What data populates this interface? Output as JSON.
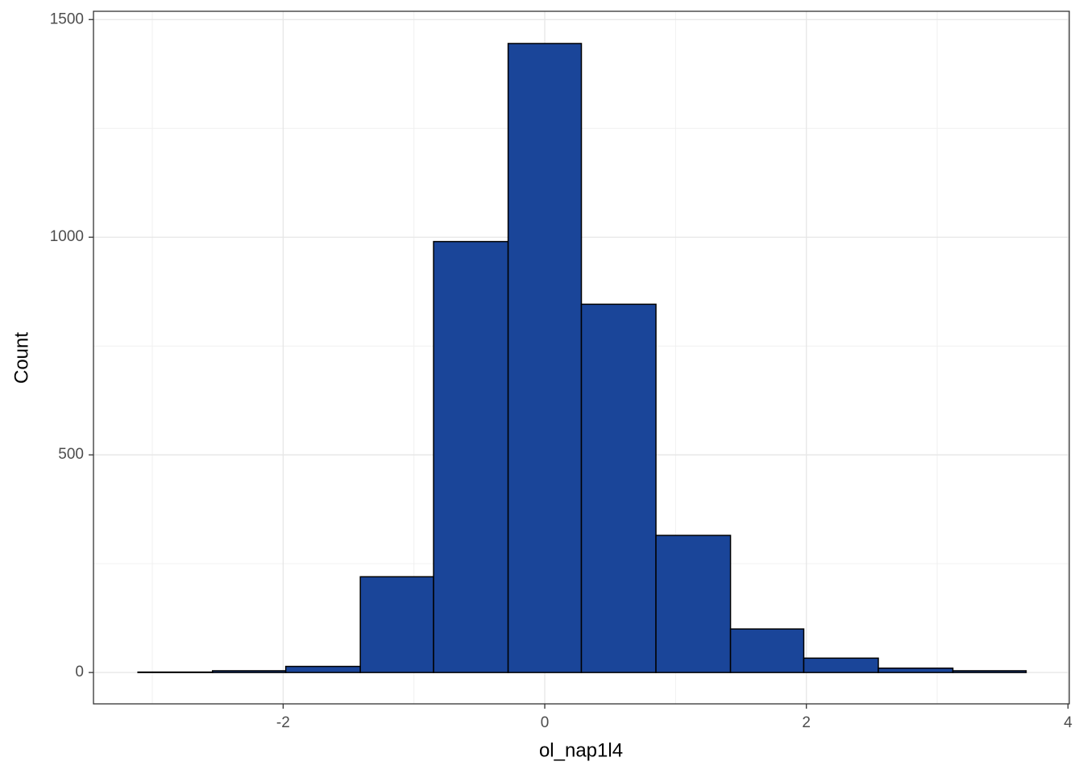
{
  "chart_data": {
    "type": "histogram",
    "x_label": "ol_nap1l4",
    "y_label": "Count",
    "bins": [
      -3.11,
      -2.54,
      -1.98,
      -1.41,
      -0.85,
      -0.28,
      0.28,
      0.85,
      1.42,
      1.98,
      2.55,
      3.12,
      3.68
    ],
    "values": [
      1,
      4,
      14,
      220,
      990,
      1445,
      846,
      315,
      100,
      33,
      10,
      4
    ],
    "color": "#1a4599",
    "xlim": [
      -3.45,
      4.01
    ],
    "ylim": [
      -72,
      1519
    ],
    "xticks": [
      -2,
      0,
      2,
      4
    ],
    "yticks": [
      0,
      500,
      1000,
      1500
    ],
    "grid": true,
    "minor_grid": true
  }
}
